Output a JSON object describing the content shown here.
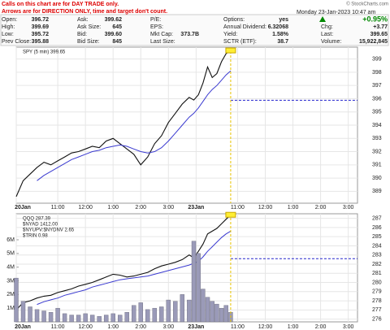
{
  "header": {
    "notes": [
      "Calls on this chart are for DAY TRADE only.",
      "Arrows are for DIRECTION ONLY, time and target don't count."
    ],
    "columns": [
      [
        {
          "label": "Open:",
          "value": "396.72"
        },
        {
          "label": "High:",
          "value": "399.69"
        },
        {
          "label": "Low:",
          "value": "395.72"
        },
        {
          "label": "Prev Close:",
          "value": "395.88"
        }
      ],
      [
        {
          "label": "Ask:",
          "value": "399.62"
        },
        {
          "label": "Ask Size:",
          "value": "645"
        },
        {
          "label": "Bid:",
          "value": "399.60"
        },
        {
          "label": "Bid Size:",
          "value": "845"
        }
      ],
      [
        {
          "label": "P/E:"
        },
        {
          "label": "EPS:"
        },
        {
          "label": "Mkt Cap:",
          "value": "373.7B"
        },
        {
          "label": "Last Size:"
        }
      ],
      [
        {
          "label": "Options:",
          "value": "yes"
        },
        {
          "label": "Annual Dividend:",
          "value": "6.32068"
        },
        {
          "label": "Yield:",
          "value": "1.58%"
        },
        {
          "label": "SCTR (ETF):",
          "value": "38.7"
        }
      ],
      [
        {
          "value": "+0.95%"
        },
        {
          "label": "Chg:",
          "value": "+3.77"
        },
        {
          "label": "Last:",
          "value": "399.65"
        },
        {
          "label": "Volume:",
          "value": "15,922,845"
        }
      ]
    ],
    "date": "Monday  23-Jan-2023  10:47 am",
    "brand": "© StockCharts.com"
  },
  "chart_data": [
    {
      "type": "line",
      "legend": [
        "SPY (5 min) 399.65"
      ],
      "x": [
        0,
        3,
        6,
        9,
        12,
        15,
        18,
        21,
        24,
        27,
        30,
        33,
        36,
        39,
        42,
        45,
        48,
        51,
        54,
        57,
        60,
        63,
        66,
        69,
        72,
        75,
        77,
        79,
        81,
        83,
        85,
        87,
        89,
        91,
        93
      ],
      "series": [
        {
          "color": "#111111",
          "values": [
            388.6,
            389.8,
            390.3,
            390.8,
            391.2,
            391.0,
            391.3,
            391.6,
            391.9,
            392.0,
            392.2,
            392.4,
            392.3,
            392.8,
            393.0,
            392.6,
            392.2,
            391.8,
            391.0,
            391.6,
            392.6,
            393.2,
            394.2,
            394.9,
            395.6,
            396.1,
            395.9,
            396.3,
            397.2,
            398.4,
            397.6,
            397.9,
            398.8,
            399.4,
            399.65
          ]
        },
        {
          "color": "#3a3ad0",
          "values": [
            null,
            null,
            null,
            389.8,
            390.2,
            390.5,
            390.8,
            391.1,
            391.4,
            391.6,
            391.8,
            392.0,
            392.1,
            392.3,
            392.4,
            392.5,
            392.4,
            392.2,
            392.0,
            391.9,
            392.0,
            392.3,
            392.8,
            393.4,
            394.0,
            394.6,
            394.9,
            395.3,
            395.8,
            396.3,
            396.7,
            397.0,
            397.4,
            397.8,
            398.1
          ]
        }
      ],
      "ref_line": 395.88,
      "ref_color": "#2222cc",
      "xlim": [
        0,
        148
      ],
      "ylim": [
        388.1,
        399.9
      ],
      "yticks": [
        389,
        390,
        391,
        392,
        393,
        394,
        395,
        396,
        397,
        398,
        399
      ],
      "xticks": [
        {
          "value": 0,
          "label": "20Jan"
        },
        {
          "value": 18,
          "label": "11:00"
        },
        {
          "value": 30,
          "label": "12:00"
        },
        {
          "value": 42,
          "label": "1:00"
        },
        {
          "value": 54,
          "label": "2:00"
        },
        {
          "value": 66,
          "label": "3:00"
        },
        {
          "value": 78,
          "label": "23Jan"
        },
        {
          "value": 96,
          "label": "11:00"
        },
        {
          "value": 108,
          "label": "12:00"
        },
        {
          "value": 120,
          "label": "1:00"
        },
        {
          "value": 132,
          "label": "2:00"
        },
        {
          "value": 144,
          "label": "3:00"
        }
      ],
      "grid": true
    },
    {
      "type": "line",
      "legend": [
        "QQQ 287.39",
        "$NYAD 1412.00",
        "$NYUPV:$NYDNV 2.65",
        "$TRIN 0.98"
      ],
      "x": [
        0,
        3,
        6,
        9,
        12,
        15,
        18,
        21,
        24,
        27,
        30,
        33,
        36,
        39,
        42,
        45,
        48,
        51,
        54,
        57,
        60,
        63,
        66,
        69,
        72,
        75,
        77,
        79,
        81,
        83,
        85,
        87,
        89,
        91,
        93
      ],
      "series": [
        {
          "color": "#111111",
          "values": [
            277.0,
            277.8,
            278.0,
            278.3,
            278.5,
            278.6,
            278.9,
            279.1,
            279.3,
            279.6,
            279.8,
            280.0,
            280.3,
            280.6,
            280.9,
            280.8,
            280.6,
            280.7,
            280.9,
            281.1,
            281.5,
            281.8,
            282.0,
            282.2,
            282.5,
            283.0,
            282.7,
            283.4,
            284.2,
            285.3,
            285.6,
            285.9,
            286.4,
            286.9,
            287.39
          ]
        },
        {
          "color": "#3a3ad0",
          "values": [
            null,
            null,
            null,
            277.6,
            277.9,
            278.1,
            278.3,
            278.6,
            278.8,
            279.0,
            279.2,
            279.5,
            279.7,
            279.9,
            280.1,
            280.3,
            280.4,
            280.5,
            280.6,
            280.7,
            280.9,
            281.1,
            281.3,
            281.5,
            281.7,
            281.9,
            282.1,
            282.3,
            282.8,
            283.4,
            283.9,
            284.4,
            284.9,
            285.3,
            285.6
          ]
        },
        {
          "color": "#9a9ab8",
          "axis": "y2",
          "values": [
            3200000,
            1500000,
            1100000,
            900000,
            800000,
            700000,
            1000000,
            600000,
            500000,
            500000,
            600000,
            500000,
            400000,
            500000,
            600000,
            500000,
            700000,
            1200000,
            1400000,
            900000,
            1000000,
            1100000,
            1600000,
            1500000,
            2000000,
            1600000,
            5900000,
            5000000,
            2400000,
            1800000,
            1500000,
            1300000,
            1000000,
            1200000,
            700000
          ]
        }
      ],
      "ref_line": 282.6,
      "ref_color": "#2222cc",
      "xlim": [
        0,
        148
      ],
      "ylim": [
        275.7,
        287.5
      ],
      "y2lim": [
        0,
        7900000
      ],
      "yticks": [
        276,
        277,
        278,
        279,
        280,
        281,
        282,
        283,
        284,
        285,
        286,
        287
      ],
      "y2ticks": [
        {
          "value": 1000000,
          "label": "1M"
        },
        {
          "value": 2000000,
          "label": "2M"
        },
        {
          "value": 3000000,
          "label": "3M"
        },
        {
          "value": 4000000,
          "label": "4M"
        },
        {
          "value": 5000000,
          "label": "5M"
        },
        {
          "value": 6000000,
          "label": "6M"
        }
      ],
      "xticks": [
        {
          "value": 0,
          "label": "20Jan"
        },
        {
          "value": 18,
          "label": "11:00"
        },
        {
          "value": 30,
          "label": "12:00"
        },
        {
          "value": 42,
          "label": "1:00"
        },
        {
          "value": 54,
          "label": "2:00"
        },
        {
          "value": 66,
          "label": "3:00"
        },
        {
          "value": 78,
          "label": "23Jan"
        },
        {
          "value": 96,
          "label": "11:00"
        },
        {
          "value": 108,
          "label": "12:00"
        },
        {
          "value": 120,
          "label": "1:00"
        },
        {
          "value": 132,
          "label": "2:00"
        },
        {
          "value": 144,
          "label": "3:00"
        }
      ],
      "grid": true
    }
  ]
}
